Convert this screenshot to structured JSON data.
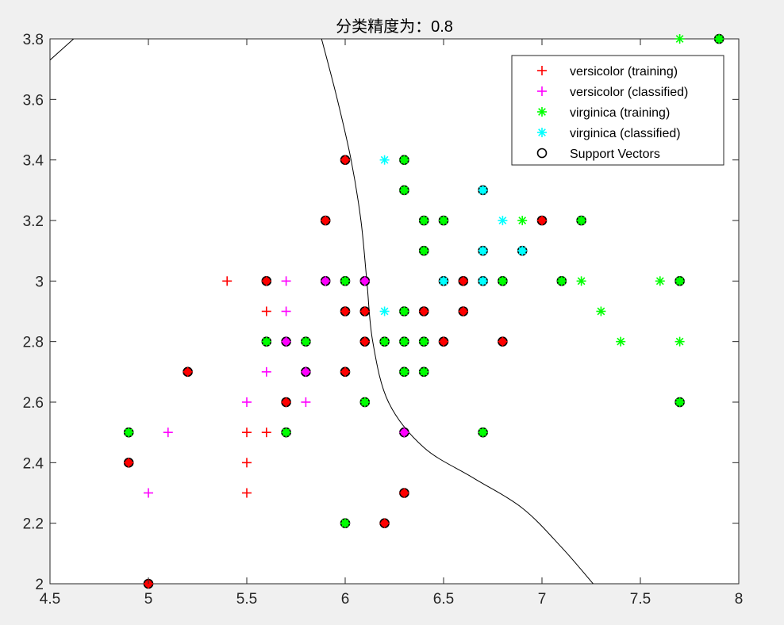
{
  "chart_data": {
    "type": "scatter",
    "title": "分类精度为：0.8",
    "xlabel": "",
    "ylabel": "",
    "xlim": [
      4.5,
      8
    ],
    "ylim": [
      2,
      3.8
    ],
    "xticks": [
      "4.5",
      "5",
      "5.5",
      "6",
      "6.5",
      "7",
      "7.5",
      "8"
    ],
    "yticks": [
      "2",
      "2.2",
      "2.4",
      "2.6",
      "2.8",
      "3",
      "3.2",
      "3.4",
      "3.6",
      "3.8"
    ],
    "grid": false,
    "legend_position": "top-right",
    "series": [
      {
        "name": "versicolor (training)",
        "marker": "plus",
        "color": "#ff0000",
        "points": [
          [
            5.4,
            3.0
          ],
          [
            5.6,
            3.0
          ],
          [
            5.6,
            2.9
          ],
          [
            5.5,
            2.5
          ],
          [
            5.5,
            2.4
          ],
          [
            5.5,
            2.3
          ],
          [
            5.6,
            2.5
          ],
          [
            5.7,
            2.6
          ],
          [
            5.2,
            2.7
          ],
          [
            4.9,
            2.4
          ],
          [
            5.0,
            2.0
          ],
          [
            5.9,
            3.2
          ],
          [
            6.0,
            3.4
          ],
          [
            6.0,
            2.9
          ],
          [
            6.1,
            2.9
          ],
          [
            6.1,
            2.8
          ],
          [
            6.0,
            2.7
          ],
          [
            6.2,
            2.2
          ],
          [
            6.3,
            2.3
          ],
          [
            6.4,
            2.9
          ],
          [
            6.5,
            2.8
          ],
          [
            6.6,
            3.0
          ],
          [
            6.6,
            2.9
          ],
          [
            6.8,
            2.8
          ],
          [
            7.0,
            3.2
          ]
        ]
      },
      {
        "name": "versicolor (classified)",
        "marker": "plus",
        "color": "#ff00ff",
        "points": [
          [
            5.7,
            3.0
          ],
          [
            5.7,
            2.9
          ],
          [
            5.6,
            2.7
          ],
          [
            5.5,
            2.6
          ],
          [
            5.1,
            2.5
          ],
          [
            5.0,
            2.3
          ],
          [
            5.7,
            2.8
          ],
          [
            5.8,
            2.7
          ],
          [
            5.8,
            2.6
          ],
          [
            5.9,
            3.0
          ],
          [
            6.1,
            3.0
          ],
          [
            6.3,
            2.5
          ]
        ]
      },
      {
        "name": "virginica (training)",
        "marker": "asterisk",
        "color": "#00ff00",
        "points": [
          [
            4.9,
            2.5
          ],
          [
            5.6,
            2.8
          ],
          [
            5.7,
            2.5
          ],
          [
            5.8,
            2.8
          ],
          [
            6.0,
            3.0
          ],
          [
            6.0,
            2.2
          ],
          [
            6.1,
            2.6
          ],
          [
            6.2,
            2.8
          ],
          [
            6.3,
            3.4
          ],
          [
            6.3,
            3.3
          ],
          [
            6.3,
            2.9
          ],
          [
            6.3,
            2.8
          ],
          [
            6.3,
            2.7
          ],
          [
            6.4,
            3.2
          ],
          [
            6.4,
            3.1
          ],
          [
            6.4,
            2.8
          ],
          [
            6.4,
            2.7
          ],
          [
            6.5,
            3.2
          ],
          [
            6.7,
            2.5
          ],
          [
            6.8,
            3.0
          ],
          [
            6.9,
            3.2
          ],
          [
            7.1,
            3.0
          ],
          [
            7.2,
            3.2
          ],
          [
            7.2,
            3.0
          ],
          [
            7.3,
            2.9
          ],
          [
            7.4,
            2.8
          ],
          [
            7.6,
            3.0
          ],
          [
            7.7,
            3.8
          ],
          [
            7.7,
            3.0
          ],
          [
            7.7,
            2.8
          ],
          [
            7.7,
            2.6
          ],
          [
            7.9,
            3.8
          ]
        ]
      },
      {
        "name": "virginica (classified)",
        "marker": "asterisk",
        "color": "#00ffff",
        "points": [
          [
            6.2,
            3.4
          ],
          [
            6.2,
            2.9
          ],
          [
            6.5,
            3.0
          ],
          [
            6.7,
            3.3
          ],
          [
            6.7,
            3.1
          ],
          [
            6.7,
            3.0
          ],
          [
            6.8,
            3.2
          ],
          [
            6.9,
            3.1
          ]
        ]
      },
      {
        "name": "Support Vectors",
        "marker": "circle",
        "color": "#000000",
        "points": [
          [
            5.6,
            3.0
          ],
          [
            5.2,
            2.7
          ],
          [
            4.9,
            2.4
          ],
          [
            5.0,
            2.0
          ],
          [
            5.9,
            3.2
          ],
          [
            6.0,
            3.4
          ],
          [
            6.0,
            2.9
          ],
          [
            6.1,
            2.9
          ],
          [
            6.1,
            2.8
          ],
          [
            6.0,
            2.7
          ],
          [
            6.2,
            2.2
          ],
          [
            6.3,
            2.3
          ],
          [
            6.4,
            2.9
          ],
          [
            6.5,
            2.8
          ],
          [
            6.6,
            3.0
          ],
          [
            6.6,
            2.9
          ],
          [
            6.8,
            2.8
          ],
          [
            7.0,
            3.2
          ],
          [
            5.7,
            2.6
          ],
          [
            5.7,
            2.8
          ],
          [
            5.8,
            2.7
          ],
          [
            5.9,
            3.0
          ],
          [
            6.1,
            3.0
          ],
          [
            6.3,
            2.5
          ],
          [
            4.9,
            2.5
          ],
          [
            5.6,
            2.8
          ],
          [
            5.7,
            2.5
          ],
          [
            5.8,
            2.8
          ],
          [
            6.0,
            3.0
          ],
          [
            6.0,
            2.2
          ],
          [
            6.1,
            2.6
          ],
          [
            6.2,
            2.8
          ],
          [
            6.3,
            3.4
          ],
          [
            6.3,
            3.3
          ],
          [
            6.3,
            2.9
          ],
          [
            6.3,
            2.8
          ],
          [
            6.3,
            2.7
          ],
          [
            6.4,
            3.2
          ],
          [
            6.4,
            3.1
          ],
          [
            6.4,
            2.8
          ],
          [
            6.4,
            2.7
          ],
          [
            6.5,
            3.2
          ],
          [
            6.7,
            2.5
          ],
          [
            6.8,
            3.0
          ],
          [
            7.1,
            3.0
          ],
          [
            7.2,
            3.2
          ],
          [
            7.7,
            3.0
          ],
          [
            7.7,
            2.6
          ],
          [
            7.9,
            3.8
          ],
          [
            6.5,
            3.0
          ],
          [
            6.7,
            3.3
          ],
          [
            6.7,
            3.1
          ],
          [
            6.7,
            3.0
          ],
          [
            6.9,
            3.1
          ]
        ],
        "filled_by_class": true
      }
    ],
    "decision_boundary": {
      "color": "#000000",
      "segments": [
        [
          [
            4.5,
            3.73
          ],
          [
            4.62,
            3.8
          ]
        ],
        [
          [
            5.88,
            3.8
          ],
          [
            5.96,
            3.6
          ],
          [
            6.03,
            3.4
          ],
          [
            6.08,
            3.2
          ],
          [
            6.11,
            3.0
          ],
          [
            6.14,
            2.8
          ],
          [
            6.22,
            2.6
          ],
          [
            6.4,
            2.45
          ],
          [
            6.65,
            2.35
          ],
          [
            6.9,
            2.25
          ],
          [
            7.1,
            2.12
          ],
          [
            7.26,
            2.0
          ]
        ]
      ]
    }
  },
  "colors": {
    "background": "#f0f0f0",
    "axes_background": "#ffffff",
    "axes_edge": "#262626"
  }
}
